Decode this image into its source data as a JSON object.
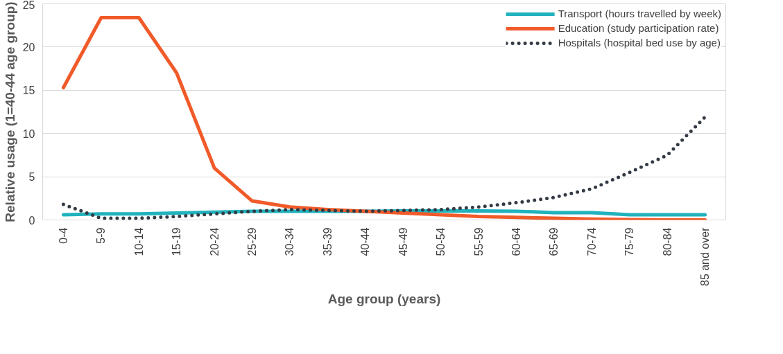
{
  "chart_data": {
    "type": "line",
    "xlabel": "Age group (years)",
    "ylabel": "Relative usage (1=40-44 age group)",
    "categories": [
      "0-4",
      "5-9",
      "10-14",
      "15-19",
      "20-24",
      "25-29",
      "30-34",
      "35-39",
      "40-44",
      "45-49",
      "50-54",
      "55-59",
      "60-64",
      "65-69",
      "70-74",
      "75-79",
      "80-84",
      "85 and over"
    ],
    "series": [
      {
        "name": "Transport (hours travelled by week)",
        "color": "#20b2bd",
        "line_style": "solid",
        "values": [
          0.6,
          0.7,
          0.7,
          0.8,
          0.9,
          1.0,
          1.0,
          1.0,
          1.0,
          1.05,
          1.05,
          1.05,
          1.0,
          0.85,
          0.85,
          0.6,
          0.6,
          0.6
        ]
      },
      {
        "name": "Education (study participation rate)",
        "color": "#f15a29",
        "line_style": "solid",
        "values": [
          15.3,
          23.4,
          23.4,
          17.0,
          6.0,
          2.2,
          1.5,
          1.2,
          1.0,
          0.8,
          0.6,
          0.4,
          0.3,
          0.2,
          0.1,
          0.05,
          0.0,
          0.0
        ]
      },
      {
        "name": "Hospitals (hospital bed use by age)",
        "color": "#333a44",
        "line_style": "dotted",
        "values": [
          1.8,
          0.2,
          0.2,
          0.4,
          0.7,
          1.0,
          1.2,
          1.1,
          1.0,
          1.1,
          1.2,
          1.5,
          2.0,
          2.6,
          3.6,
          5.5,
          7.5,
          11.9
        ]
      }
    ],
    "ylim": [
      0,
      25
    ],
    "yticks": [
      0,
      5,
      10,
      15,
      20,
      25
    ],
    "grid": "y",
    "legend": "top",
    "marker": "none"
  }
}
